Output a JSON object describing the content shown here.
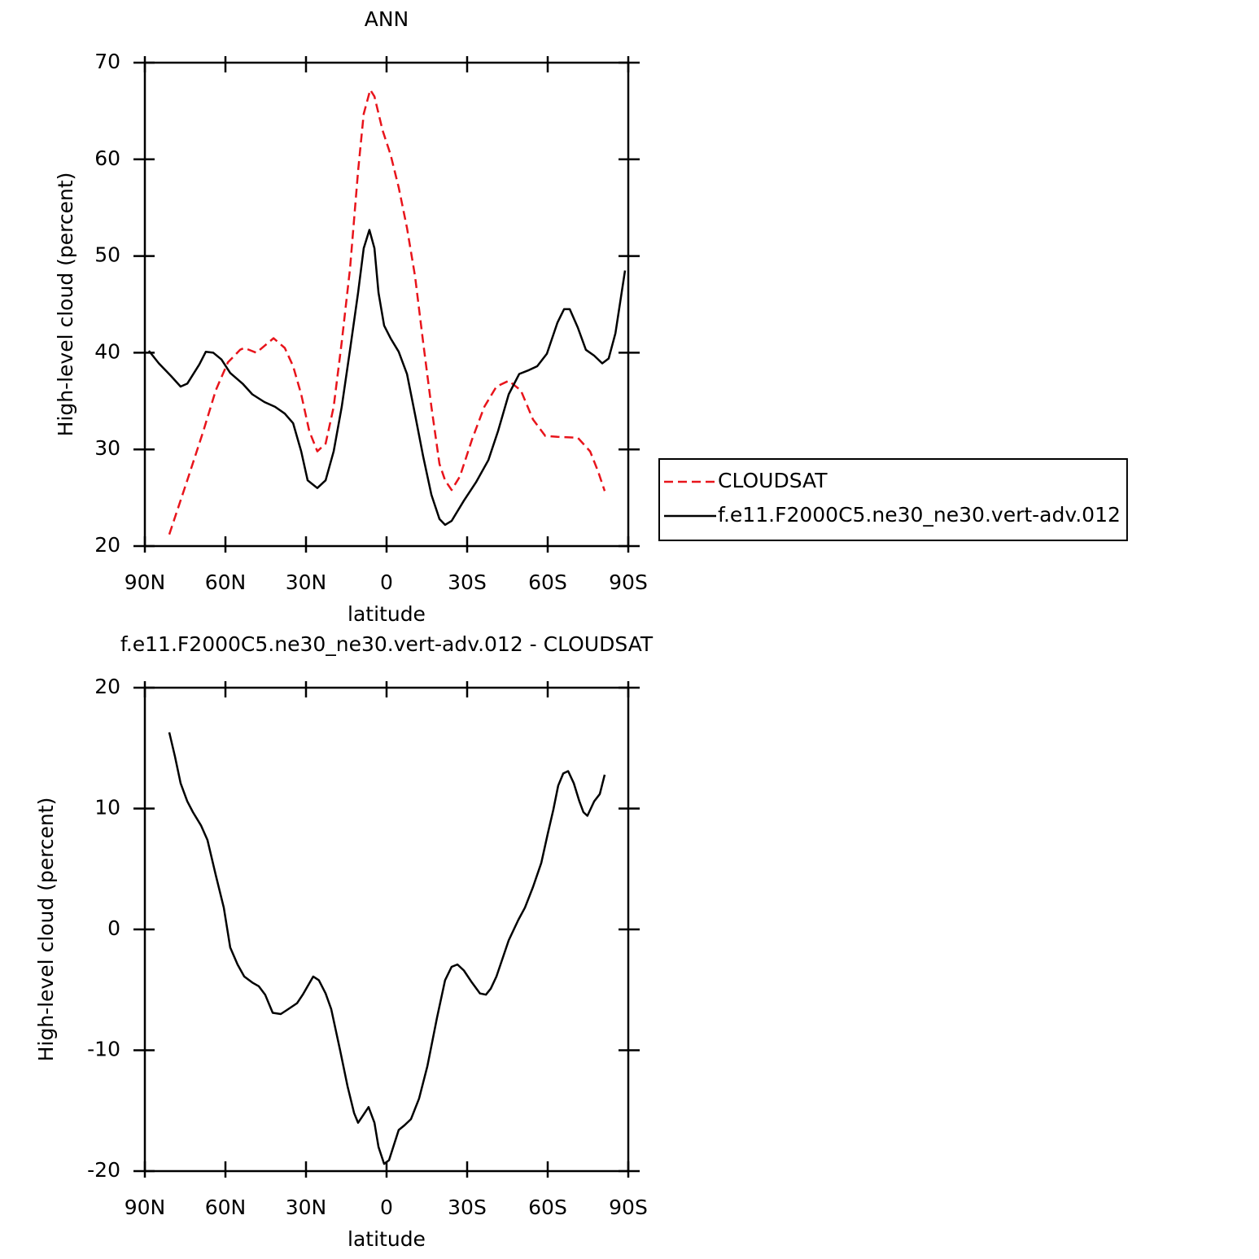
{
  "chart_data": [
    {
      "type": "line",
      "title": "ANN",
      "xlabel": "latitude",
      "ylabel": "High-level cloud (percent)",
      "xlim": [
        90,
        -90
      ],
      "ylim": [
        20,
        70
      ],
      "xticks": [
        {
          "value": 90,
          "label": "90N"
        },
        {
          "value": 60,
          "label": "60N"
        },
        {
          "value": 30,
          "label": "30N"
        },
        0,
        {
          "value": -30,
          "label": "30S"
        },
        {
          "value": -60,
          "label": "60S"
        },
        {
          "value": -90,
          "label": "90S"
        }
      ],
      "yticks": [
        20,
        30,
        40,
        50,
        60,
        70
      ],
      "legend": "right",
      "series": [
        {
          "name": "CLOUDSAT",
          "color": "#e8141b",
          "style": "dashed",
          "x": [
            80.9,
            74.2,
            68.2,
            63.6,
            59.1,
            54.5,
            53.0,
            48.5,
            45.5,
            42.1,
            37.9,
            34.8,
            31.8,
            28.8,
            25.8,
            22.7,
            19.7,
            16.7,
            13.6,
            10.6,
            8.5,
            6.1,
            4.5,
            1.5,
            -1.5,
            -4.5,
            -7.6,
            -10.6,
            -13.6,
            -16.7,
            -19.7,
            -21.8,
            -24.2,
            -27.3,
            -31.8,
            -36.4,
            -40.9,
            -45.5,
            -50.0,
            -54.5,
            -59.1,
            -63.6,
            -71.2,
            -75.8,
            -78.8,
            -81.2
          ],
          "values": [
            21.2,
            26.8,
            31.9,
            36.1,
            39.0,
            40.3,
            40.5,
            40.0,
            40.7,
            41.5,
            40.5,
            38.6,
            35.7,
            31.9,
            29.8,
            30.6,
            34.4,
            41.1,
            48.7,
            58.8,
            64.7,
            67.2,
            66.5,
            63.0,
            60.5,
            57.1,
            52.9,
            47.9,
            41.1,
            34.4,
            28.5,
            26.8,
            25.8,
            27.2,
            31.0,
            34.4,
            36.5,
            37.1,
            36.1,
            33.1,
            31.4,
            31.3,
            31.2,
            29.8,
            27.7,
            25.7
          ]
        },
        {
          "name": "f.e11.F2000C5.ne30_ne30.vert-adv.012",
          "color": "#000000",
          "style": "solid",
          "x": [
            88.5,
            84.8,
            80.3,
            76.7,
            74.2,
            69.7,
            67.3,
            64.5,
            61.5,
            58.2,
            53.6,
            50.0,
            45.5,
            41.5,
            37.9,
            34.8,
            31.8,
            29.4,
            25.8,
            22.7,
            19.7,
            16.7,
            13.6,
            10.6,
            8.5,
            6.4,
            4.5,
            3.0,
            0.9,
            -1.5,
            -4.5,
            -7.6,
            -10.6,
            -13.6,
            -16.7,
            -19.7,
            -21.8,
            -24.2,
            -28.8,
            -33.3,
            -37.9,
            -41.5,
            -45.5,
            -49.4,
            -53.0,
            -56.1,
            -59.7,
            -63.6,
            -66.1,
            -68.2,
            -71.2,
            -74.2,
            -77.3,
            -80.3,
            -82.7,
            -85.2,
            -88.8
          ],
          "values": [
            40.2,
            38.9,
            37.6,
            36.5,
            36.8,
            38.8,
            40.1,
            40.0,
            39.3,
            37.9,
            36.8,
            35.7,
            34.9,
            34.4,
            33.7,
            32.7,
            29.8,
            26.8,
            26.0,
            26.8,
            29.8,
            34.4,
            40.3,
            46.2,
            50.8,
            52.7,
            50.8,
            46.2,
            42.8,
            41.5,
            40.1,
            37.8,
            33.6,
            29.3,
            25.3,
            22.8,
            22.2,
            22.6,
            24.7,
            26.6,
            28.9,
            31.9,
            35.7,
            37.8,
            38.2,
            38.6,
            39.9,
            43.1,
            44.5,
            44.5,
            42.6,
            40.3,
            39.7,
            38.9,
            39.4,
            42.0,
            48.5
          ]
        }
      ]
    },
    {
      "type": "line",
      "title": "f.e11.F2000C5.ne30_ne30.vert-adv.012 - CLOUDSAT",
      "xlabel": "latitude",
      "ylabel": "High-level cloud (percent)",
      "xlim": [
        90,
        -90
      ],
      "ylim": [
        -20,
        20
      ],
      "xticks": [
        {
          "value": 90,
          "label": "90N"
        },
        {
          "value": 60,
          "label": "60N"
        },
        {
          "value": 30,
          "label": "30N"
        },
        0,
        {
          "value": -30,
          "label": "30S"
        },
        {
          "value": -60,
          "label": "60S"
        },
        {
          "value": -90,
          "label": "90S"
        }
      ],
      "yticks": [
        -20,
        -10,
        0,
        10,
        20
      ],
      "series": [
        {
          "color": "#000000",
          "style": "solid",
          "x": [
            80.9,
            78.8,
            76.7,
            74.2,
            72.1,
            69.1,
            66.7,
            63.6,
            60.6,
            58.2,
            55.5,
            53.0,
            50.0,
            47.6,
            45.2,
            42.4,
            39.4,
            37.3,
            33.3,
            31.2,
            27.3,
            25.2,
            22.7,
            20.6,
            17.3,
            14.5,
            12.1,
            10.6,
            9.1,
            6.7,
            4.5,
            3.0,
            0.9,
            -0.9,
            -4.5,
            -6.7,
            -9.1,
            -12.1,
            -15.2,
            -18.8,
            -21.8,
            -24.2,
            -26.4,
            -28.8,
            -31.8,
            -34.8,
            -37.0,
            -38.8,
            -40.9,
            -45.5,
            -49.1,
            -51.5,
            -54.5,
            -57.6,
            -60.0,
            -62.1,
            -63.9,
            -65.8,
            -67.6,
            -69.7,
            -71.8,
            -73.3,
            -74.8,
            -77.3,
            -79.4,
            -81.2
          ],
          "values": [
            16.3,
            14.3,
            12.1,
            10.6,
            9.7,
            8.6,
            7.4,
            4.5,
            1.8,
            -1.5,
            -2.9,
            -3.9,
            -4.4,
            -4.7,
            -5.4,
            -6.9,
            -7.0,
            -6.7,
            -6.1,
            -5.4,
            -3.9,
            -4.2,
            -5.3,
            -6.6,
            -10.0,
            -13.0,
            -15.2,
            -16.0,
            -15.5,
            -14.7,
            -16.0,
            -18.0,
            -19.4,
            -19.1,
            -16.6,
            -16.2,
            -15.7,
            -14.0,
            -11.3,
            -7.3,
            -4.2,
            -3.1,
            -2.9,
            -3.4,
            -4.4,
            -5.3,
            -5.4,
            -4.9,
            -3.9,
            -0.9,
            0.8,
            1.8,
            3.5,
            5.5,
            7.9,
            9.9,
            11.9,
            12.9,
            13.1,
            12.1,
            10.6,
            9.7,
            9.4,
            10.6,
            11.2,
            12.8
          ]
        }
      ]
    }
  ]
}
